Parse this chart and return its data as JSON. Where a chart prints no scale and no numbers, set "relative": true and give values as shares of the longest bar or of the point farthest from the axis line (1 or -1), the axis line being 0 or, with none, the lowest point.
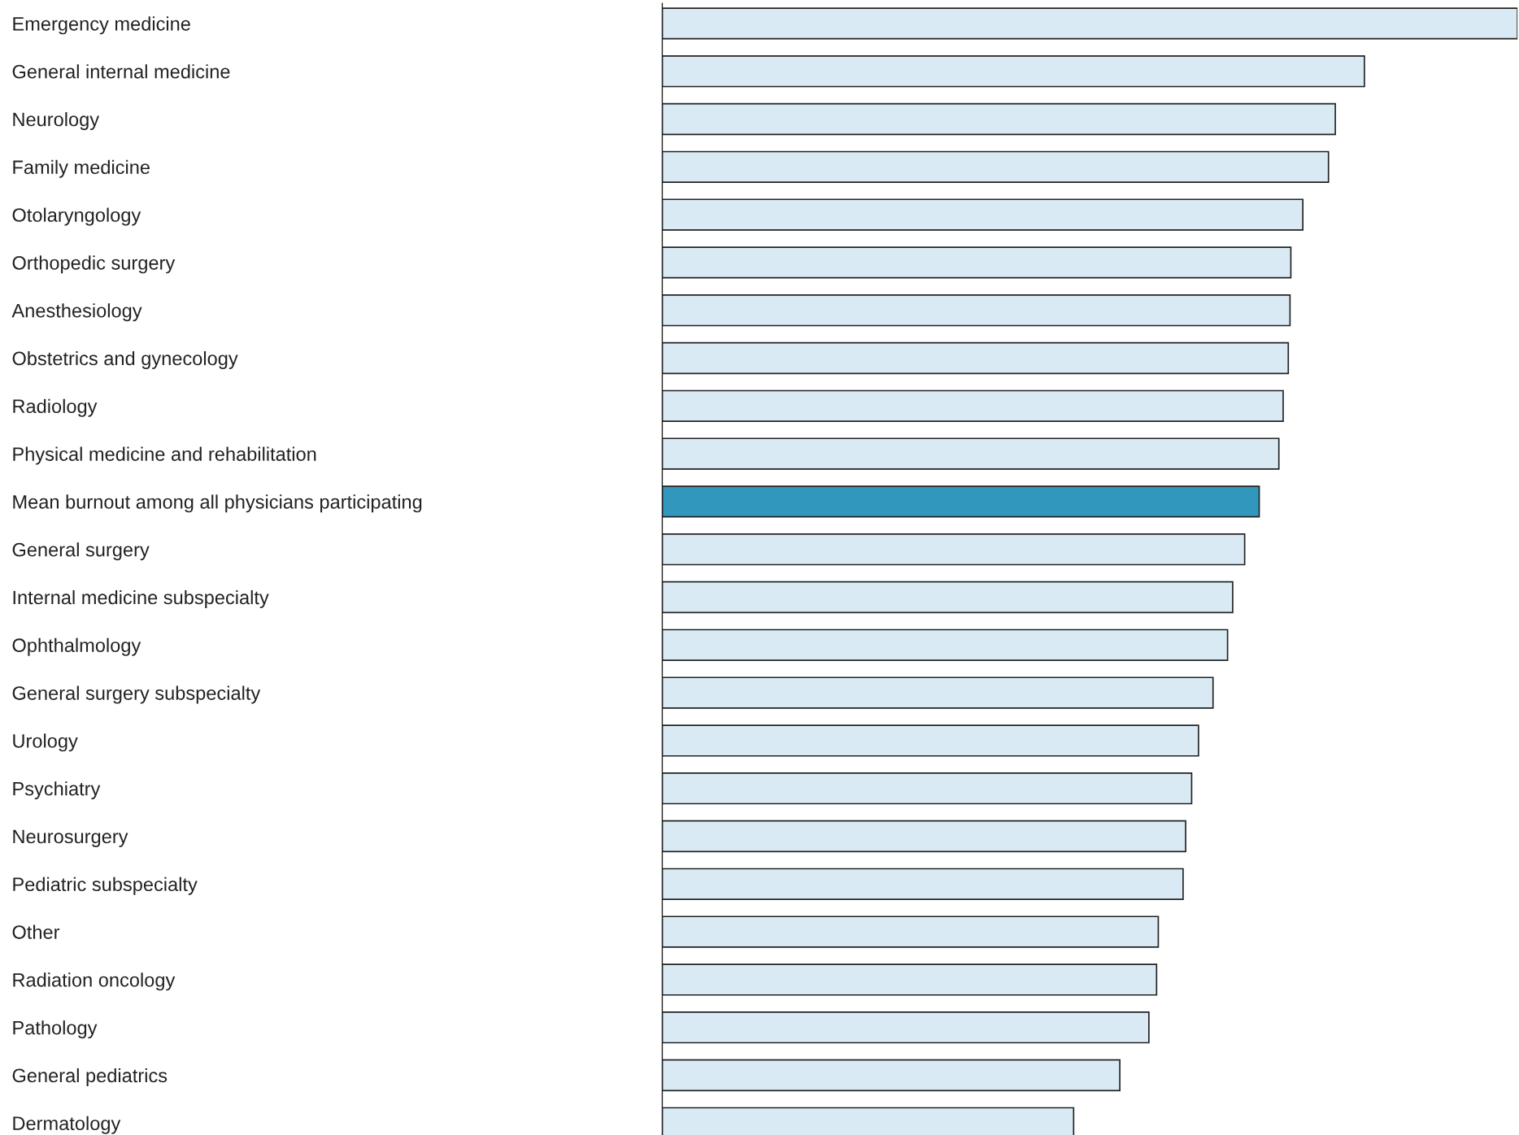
{
  "chart_data": {
    "type": "bar",
    "orientation": "horizontal",
    "relative": true,
    "categories": [
      "Emergency medicine",
      "General internal medicine",
      "Neurology",
      "Family medicine",
      "Otolaryngology",
      "Orthopedic surgery",
      "Anesthesiology",
      "Obstetrics and gynecology",
      "Radiology",
      "Physical medicine and rehabilitation",
      "Mean burnout among all physicians participating",
      "General surgery",
      "Internal medicine subspecialty",
      "Ophthalmology",
      "General surgery subspecialty",
      "Urology",
      "Psychiatry",
      "Neurosurgery",
      "Pediatric subspecialty",
      "Other",
      "Radiation oncology",
      "Pathology",
      "General pediatrics",
      "Dermatology"
    ],
    "values": [
      1.0,
      0.821,
      0.787,
      0.779,
      0.749,
      0.735,
      0.734,
      0.732,
      0.726,
      0.721,
      0.698,
      0.681,
      0.667,
      0.661,
      0.644,
      0.627,
      0.619,
      0.612,
      0.609,
      0.58,
      0.578,
      0.569,
      0.535,
      0.481
    ],
    "colors": [
      "#d9eaf4",
      "#d9eaf4",
      "#d9eaf4",
      "#d9eaf4",
      "#d9eaf4",
      "#d9eaf4",
      "#d9eaf4",
      "#d9eaf4",
      "#d9eaf4",
      "#d9eaf4",
      "#3197bc",
      "#d9eaf4",
      "#d9eaf4",
      "#d9eaf4",
      "#d9eaf4",
      "#d9eaf4",
      "#d9eaf4",
      "#d9eaf4",
      "#d9eaf4",
      "#d9eaf4",
      "#d9eaf4",
      "#d9eaf4",
      "#d9eaf4",
      "#d9eaf4"
    ],
    "grid": false,
    "legend": false
  }
}
